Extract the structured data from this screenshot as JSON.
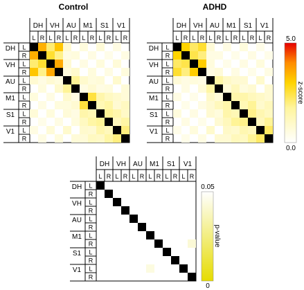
{
  "groups": [
    "DH",
    "VH",
    "AU",
    "M1",
    "S1",
    "V1"
  ],
  "sides": [
    "L",
    "R"
  ],
  "charts": [
    {
      "title": "Control",
      "type": "heatmap",
      "measure": "z-score"
    },
    {
      "title": "ADHD",
      "type": "heatmap",
      "measure": "z-score"
    },
    {
      "title": "",
      "type": "heatmap",
      "measure": "p-value"
    }
  ],
  "colorbars": [
    {
      "label": "z-score",
      "max": "5.0",
      "min": "0.0"
    },
    {
      "label": "p-value",
      "max": "0.05",
      "min": "0"
    }
  ],
  "chart_data": [
    {
      "type": "heatmap",
      "title": "Control",
      "rows": 12,
      "cols": 12,
      "value_label": "z-score",
      "vmin": 0,
      "vmax": 5,
      "diagonal": "black",
      "cells": [
        [
          0,
          1,
          3.5
        ],
        [
          0,
          2,
          2.1
        ],
        [
          0,
          3,
          3.2
        ],
        [
          0,
          4,
          0.8
        ],
        [
          0,
          6,
          0.6
        ],
        [
          0,
          8,
          0.7
        ],
        [
          0,
          10,
          0.5
        ],
        [
          1,
          2,
          2.6
        ],
        [
          1,
          3,
          1.9
        ],
        [
          1,
          4,
          0.5
        ],
        [
          1,
          5,
          0.6
        ],
        [
          1,
          7,
          0.5
        ],
        [
          1,
          9,
          0.4
        ],
        [
          1,
          11,
          0.5
        ],
        [
          2,
          3,
          3.6
        ],
        [
          2,
          4,
          0.8
        ],
        [
          2,
          6,
          0.5
        ],
        [
          2,
          8,
          0.6
        ],
        [
          2,
          10,
          0.7
        ],
        [
          3,
          4,
          0.6
        ],
        [
          3,
          5,
          0.9
        ],
        [
          3,
          7,
          0.6
        ],
        [
          3,
          9,
          0.5
        ],
        [
          3,
          11,
          0.6
        ],
        [
          4,
          5,
          1.8
        ],
        [
          4,
          6,
          0.9
        ],
        [
          4,
          7,
          0.6
        ],
        [
          4,
          8,
          0.7
        ],
        [
          4,
          10,
          0.9
        ],
        [
          5,
          6,
          0.5
        ],
        [
          5,
          7,
          0.8
        ],
        [
          5,
          8,
          0.5
        ],
        [
          5,
          9,
          0.6
        ],
        [
          5,
          11,
          0.7
        ],
        [
          6,
          7,
          2.5
        ],
        [
          6,
          8,
          1.5
        ],
        [
          6,
          9,
          1.1
        ],
        [
          6,
          10,
          0.9
        ],
        [
          6,
          11,
          0.7
        ],
        [
          7,
          8,
          1.3
        ],
        [
          7,
          9,
          1.6
        ],
        [
          7,
          10,
          0.8
        ],
        [
          7,
          11,
          1.1
        ],
        [
          8,
          9,
          1.8
        ],
        [
          8,
          10,
          1.5
        ],
        [
          8,
          11,
          1.0
        ],
        [
          9,
          10,
          1.2
        ],
        [
          9,
          11,
          1.6
        ],
        [
          10,
          11,
          2.0
        ]
      ]
    },
    {
      "type": "heatmap",
      "title": "ADHD",
      "rows": 12,
      "cols": 12,
      "value_label": "z-score",
      "vmin": 0,
      "vmax": 5,
      "diagonal": "black",
      "cells": [
        [
          0,
          1,
          3.0
        ],
        [
          0,
          2,
          2.2
        ],
        [
          0,
          3,
          2.6
        ],
        [
          0,
          4,
          0.7
        ],
        [
          0,
          6,
          0.5
        ],
        [
          0,
          8,
          0.6
        ],
        [
          0,
          10,
          0.4
        ],
        [
          1,
          2,
          2.4
        ],
        [
          1,
          3,
          2.0
        ],
        [
          1,
          4,
          0.5
        ],
        [
          1,
          5,
          0.5
        ],
        [
          1,
          7,
          0.4
        ],
        [
          1,
          9,
          0.5
        ],
        [
          1,
          11,
          0.4
        ],
        [
          2,
          3,
          3.1
        ],
        [
          2,
          4,
          0.6
        ],
        [
          2,
          6,
          0.4
        ],
        [
          2,
          8,
          0.5
        ],
        [
          2,
          10,
          0.6
        ],
        [
          3,
          4,
          0.5
        ],
        [
          3,
          5,
          0.7
        ],
        [
          3,
          7,
          0.5
        ],
        [
          3,
          9,
          0.4
        ],
        [
          3,
          11,
          0.5
        ],
        [
          4,
          5,
          1.6
        ],
        [
          4,
          6,
          1.0
        ],
        [
          4,
          7,
          0.8
        ],
        [
          4,
          8,
          0.8
        ],
        [
          4,
          10,
          0.9
        ],
        [
          5,
          6,
          0.7
        ],
        [
          5,
          7,
          1.2
        ],
        [
          5,
          8,
          0.6
        ],
        [
          5,
          9,
          0.8
        ],
        [
          5,
          11,
          0.8
        ],
        [
          6,
          7,
          1.5
        ],
        [
          6,
          8,
          1.5
        ],
        [
          6,
          9,
          1.2
        ],
        [
          6,
          10,
          1.0
        ],
        [
          6,
          11,
          0.8
        ],
        [
          7,
          8,
          1.3
        ],
        [
          7,
          9,
          1.8
        ],
        [
          7,
          10,
          0.9
        ],
        [
          7,
          11,
          1.2
        ],
        [
          8,
          9,
          1.9
        ],
        [
          8,
          10,
          1.4
        ],
        [
          8,
          11,
          1.1
        ],
        [
          9,
          10,
          1.2
        ],
        [
          9,
          11,
          1.8
        ],
        [
          10,
          11,
          2.2
        ]
      ]
    },
    {
      "type": "heatmap",
      "title": "",
      "rows": 12,
      "cols": 12,
      "value_label": "p-value",
      "vmin": 0,
      "vmax": 0.05,
      "diagonal": "black",
      "cells": [
        [
          7,
          11,
          0.042
        ],
        [
          10,
          6,
          0.044
        ]
      ]
    }
  ]
}
